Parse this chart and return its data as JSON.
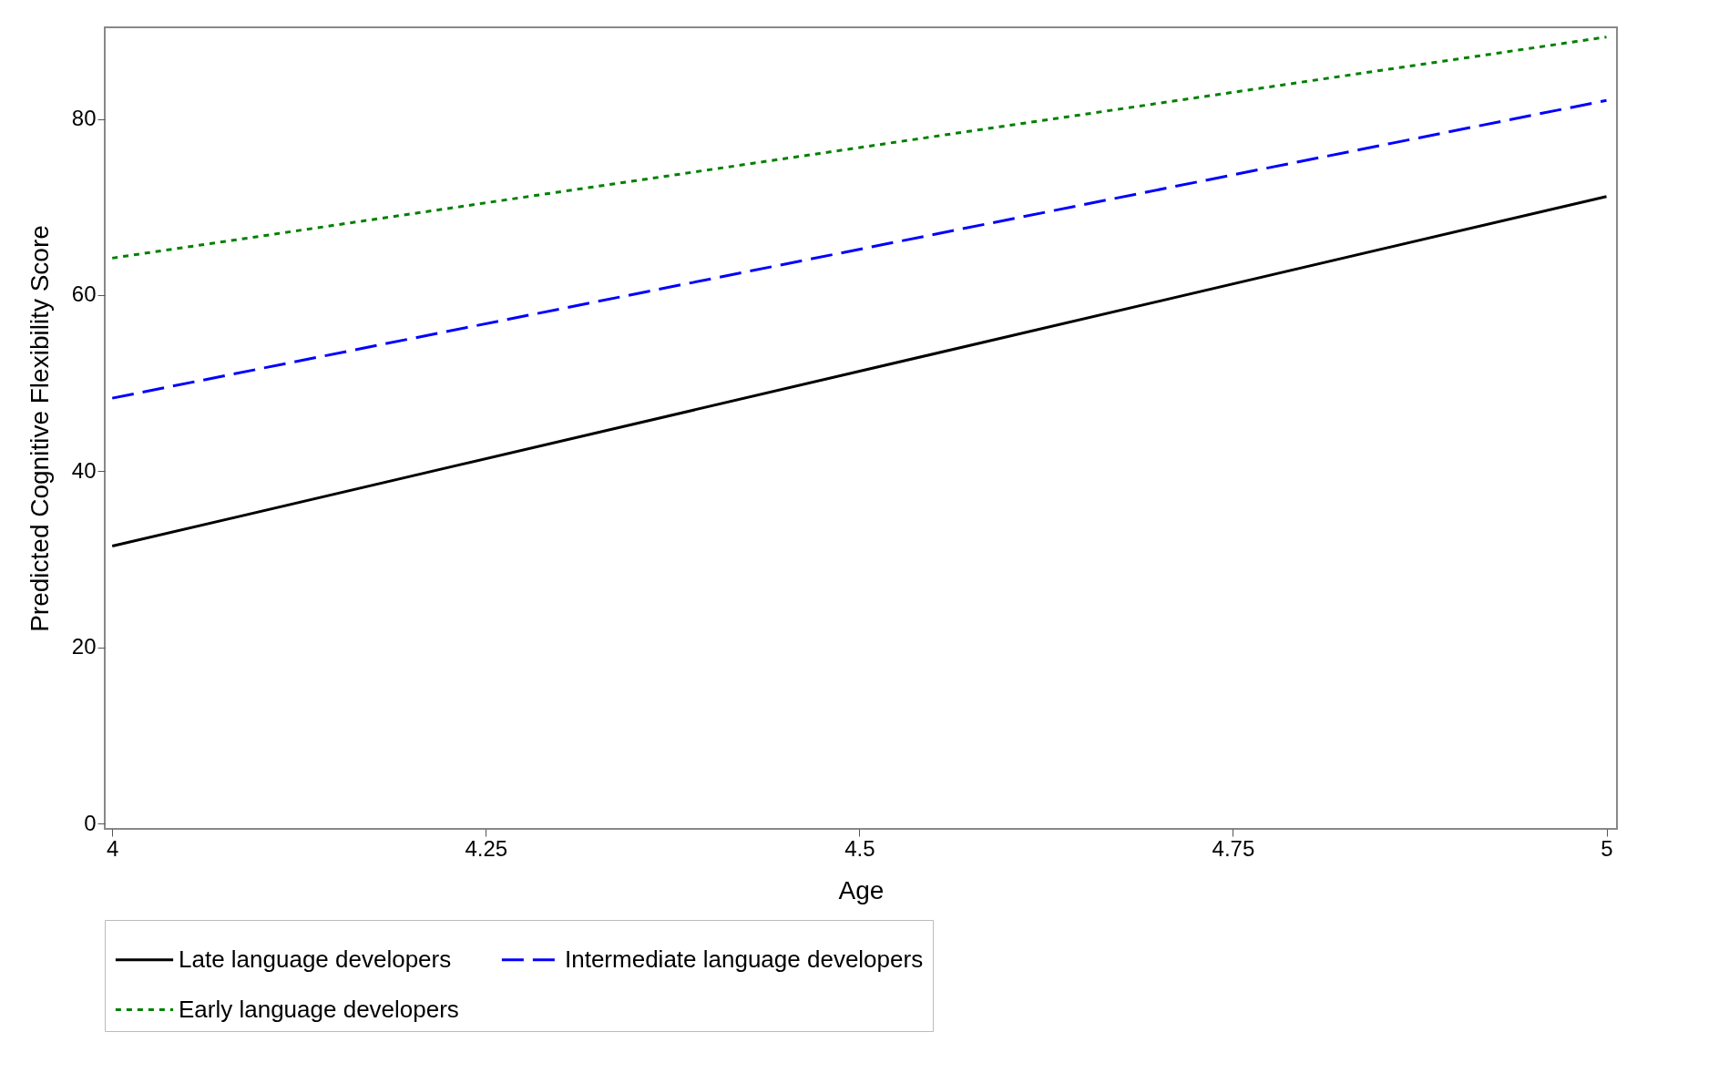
{
  "chart_data": {
    "type": "line",
    "xlabel": "Age",
    "ylabel": "Predicted Cognitive Flexibility Score",
    "x": [
      4,
      5
    ],
    "xlim": [
      3.995,
      5.007
    ],
    "xticks": [
      4,
      4.25,
      4.5,
      4.75,
      5
    ],
    "ylim": [
      -0.6,
      90.4
    ],
    "yticks": [
      0,
      20,
      40,
      60,
      80
    ],
    "grid": false,
    "legend": "bottom",
    "marker": "none",
    "series": [
      {
        "name": "Late language developers",
        "color": "#000000",
        "line_style": "solid",
        "values": [
          31.5,
          71.2
        ]
      },
      {
        "name": "Intermediate language developers",
        "color": "#0000ff",
        "line_style": "dashed",
        "values": [
          48.3,
          82.1
        ]
      },
      {
        "name": "Early language developers",
        "color": "#008000",
        "line_style": "dotted",
        "values": [
          64.2,
          89.3
        ]
      }
    ]
  }
}
